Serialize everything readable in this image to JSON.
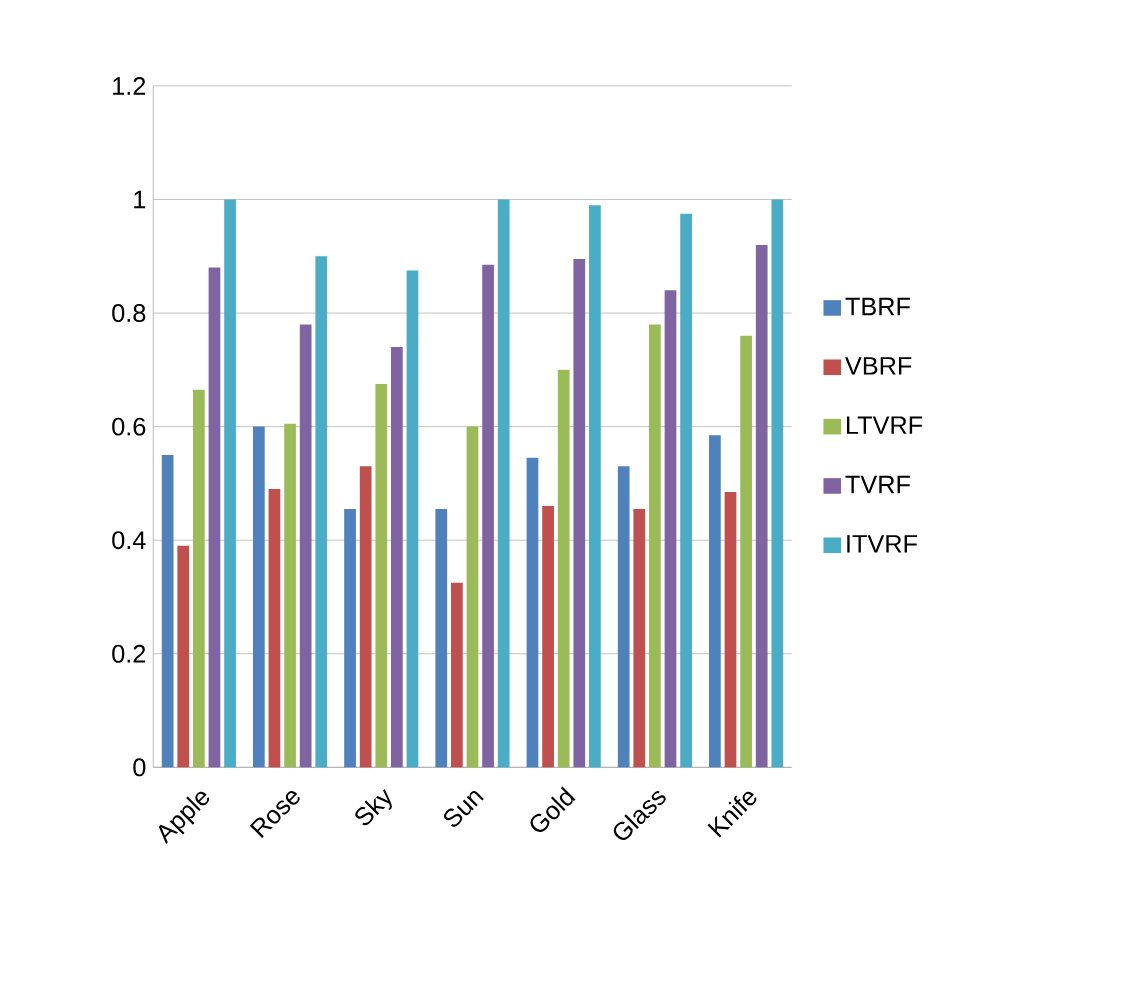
{
  "chart_data": {
    "type": "bar",
    "categories": [
      "Apple",
      "Rose",
      "Sky",
      "Sun",
      "Gold",
      "Glass",
      "Knife"
    ],
    "series": [
      {
        "name": "TBRF",
        "color": "#4f81bd",
        "values": [
          0.55,
          0.6,
          0.455,
          0.455,
          0.545,
          0.53,
          0.585
        ]
      },
      {
        "name": "VBRF",
        "color": "#c0504d",
        "values": [
          0.39,
          0.49,
          0.53,
          0.325,
          0.46,
          0.455,
          0.485
        ]
      },
      {
        "name": "LTVRF",
        "color": "#9bbb59",
        "values": [
          0.665,
          0.605,
          0.675,
          0.6,
          0.7,
          0.78,
          0.76
        ]
      },
      {
        "name": "TVRF",
        "color": "#8064a2",
        "values": [
          0.88,
          0.78,
          0.74,
          0.885,
          0.895,
          0.84,
          0.92
        ]
      },
      {
        "name": "ITVRF",
        "color": "#4bacc6",
        "values": [
          1.0,
          0.9,
          0.875,
          1.0,
          0.99,
          0.975,
          1.0
        ]
      }
    ],
    "ylim": [
      0,
      1.2
    ],
    "yticks": [
      0,
      0.2,
      0.4,
      0.6,
      0.8,
      1,
      1.2
    ],
    "grid": "y",
    "legend": "right"
  }
}
